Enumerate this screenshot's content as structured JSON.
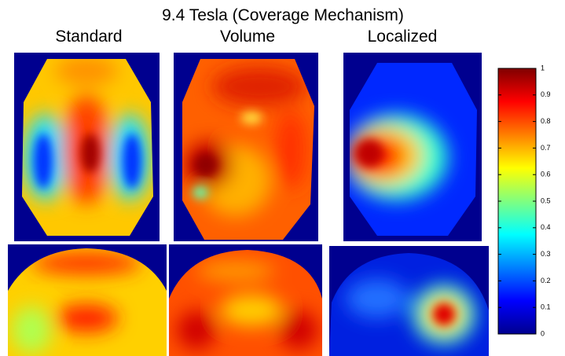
{
  "chart_data": {
    "type": "heatmap",
    "title": "9.4 Tesla (Coverage Mechanism)",
    "columns": [
      "Standard",
      "Volume",
      "Localized"
    ],
    "clim": [
      0,
      1
    ],
    "cticks": [
      0,
      0.1,
      0.2,
      0.3,
      0.4,
      0.5,
      0.6,
      0.7,
      0.8,
      0.9,
      1
    ]
  }
}
